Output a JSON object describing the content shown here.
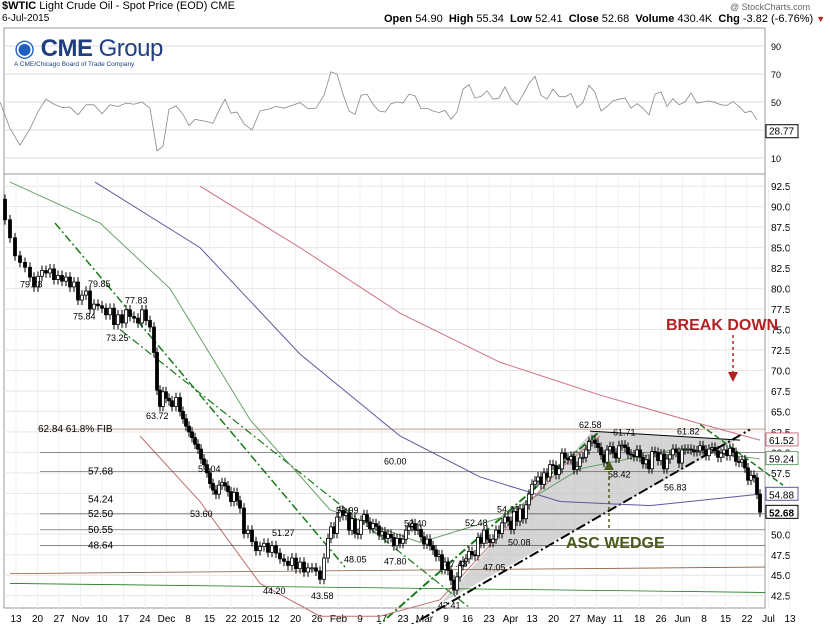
{
  "header": {
    "symbol": "$WTIC",
    "name": "Light Crude Oil - Spot Price (EOD)",
    "exchange": "CME",
    "date": "6-Jul-2015",
    "open_label": "Open",
    "open": "54.90",
    "high_label": "High",
    "high": "55.34",
    "low_label": "Low",
    "low": "52.41",
    "close_label": "Close",
    "close": "52.68",
    "volume_label": "Volume",
    "volume": "430.4K",
    "chg_label": "Chg",
    "chg": "-3.82 (-6.76%)",
    "chg_arrow": "▼",
    "watermark": "@ StockCharts.com"
  },
  "logo": {
    "brand_bold": "CME",
    "brand_light": " Group",
    "subtitle": "A CME/Chicago Board of Trade Company"
  },
  "colors": {
    "up": "#000000",
    "down": "#000000",
    "fib": "#8b5a3c",
    "wedge_fill": "#bfbfbf",
    "trend_green": "#1a7a1a",
    "annot_red": "#b22222",
    "annot_green": "#4a5a1a",
    "ma_blue": "#5a5aa0",
    "ma_pink": "#d07080",
    "ma_green": "#6aa06a"
  },
  "chart_data": {
    "type": "candlestick",
    "title": "$WTIC Light Crude Oil - Spot Price (EOD) CME",
    "y_axis": {
      "side": "right",
      "min": 41.0,
      "max": 93.5,
      "ticks": [
        "42.5",
        "45.0",
        "47.5",
        "50.0",
        "52.5",
        "55.0",
        "57.5",
        "60.0",
        "62.5",
        "65.0",
        "67.5",
        "70.0",
        "72.5",
        "75.0",
        "77.5",
        "80.0",
        "82.5",
        "85.0",
        "87.5",
        "90.0",
        "92.5"
      ]
    },
    "x_axis": {
      "labels": [
        "13",
        "20",
        "27",
        "Nov",
        "10",
        "17",
        "24",
        "Dec",
        "8",
        "15",
        "22",
        "2015",
        "12",
        "20",
        "26",
        "Feb",
        "9",
        "17",
        "23",
        "Mar",
        "9",
        "16",
        "23",
        "Apr",
        "13",
        "20",
        "27",
        "May",
        "11",
        "18",
        "26",
        "Jun",
        "8",
        "15",
        "22",
        "Jul",
        "13"
      ]
    },
    "rsi_panel": {
      "ticks": [
        "10",
        "30",
        "50",
        "70",
        "90"
      ],
      "last": "28.77"
    },
    "price_path": [
      [
        0,
        90.9
      ],
      [
        5,
        88.4
      ],
      [
        10,
        86.2
      ],
      [
        15,
        84.0
      ],
      [
        20,
        83.2
      ],
      [
        25,
        82.6
      ],
      [
        30,
        81.4
      ],
      [
        34,
        80.2
      ],
      [
        38,
        81.5
      ],
      [
        42,
        82.2
      ],
      [
        46,
        81.9
      ],
      [
        50,
        82.4
      ],
      [
        54,
        81.1
      ],
      [
        58,
        81.6
      ],
      [
        62,
        80.9
      ],
      [
        66,
        81.4
      ],
      [
        70,
        80.2
      ],
      [
        74,
        80.8
      ],
      [
        78,
        78.6
      ],
      [
        82,
        79.2
      ],
      [
        86,
        79.7
      ],
      [
        90,
        77.5
      ],
      [
        94,
        78.1
      ],
      [
        98,
        77.9
      ],
      [
        102,
        77.6
      ],
      [
        106,
        76.8
      ],
      [
        110,
        77.6
      ],
      [
        114,
        75.6
      ],
      [
        118,
        76.8
      ],
      [
        122,
        75.8
      ],
      [
        126,
        77.4
      ],
      [
        130,
        76.6
      ],
      [
        134,
        76.4
      ],
      [
        138,
        75.8
      ],
      [
        142,
        77.4
      ],
      [
        146,
        76.1
      ],
      [
        150,
        75.3
      ],
      [
        154,
        72.2
      ],
      [
        157,
        67.6
      ],
      [
        160,
        65.6
      ],
      [
        163,
        67.4
      ],
      [
        166,
        66.6
      ],
      [
        169,
        66.3
      ],
      [
        172,
        65.6
      ],
      [
        176,
        66.7
      ],
      [
        180,
        65.0
      ],
      [
        183,
        64.1
      ],
      [
        186,
        63.2
      ],
      [
        189,
        62.5
      ],
      [
        192,
        61.8
      ],
      [
        195,
        61.0
      ],
      [
        198,
        60.4
      ],
      [
        201,
        59.2
      ],
      [
        204,
        58.5
      ],
      [
        207,
        57.5
      ],
      [
        210,
        56.2
      ],
      [
        213,
        55.4
      ],
      [
        216,
        54.9
      ],
      [
        219,
        56.0
      ],
      [
        222,
        56.3
      ],
      [
        225,
        55.9
      ],
      [
        228,
        55.2
      ],
      [
        231,
        54.0
      ],
      [
        234,
        55.1
      ],
      [
        237,
        54.1
      ],
      [
        240,
        53.2
      ],
      [
        244,
        50.1
      ],
      [
        248,
        50.5
      ],
      [
        252,
        49.1
      ],
      [
        256,
        48.0
      ],
      [
        260,
        48.5
      ],
      [
        264,
        48.9
      ],
      [
        268,
        47.8
      ],
      [
        272,
        48.6
      ],
      [
        276,
        47.7
      ],
      [
        280,
        47.0
      ],
      [
        284,
        46.7
      ],
      [
        288,
        46.2
      ],
      [
        292,
        47.1
      ],
      [
        296,
        45.8
      ],
      [
        300,
        46.6
      ],
      [
        304,
        45.4
      ],
      [
        308,
        45.9
      ],
      [
        312,
        45.9
      ],
      [
        316,
        45.5
      ],
      [
        320,
        44.5
      ],
      [
        324,
        47.1
      ],
      [
        328,
        49.5
      ],
      [
        331,
        50.9
      ],
      [
        334,
        50.1
      ],
      [
        337,
        52.1
      ],
      [
        340,
        52.9
      ],
      [
        343,
        52.3
      ],
      [
        346,
        52.6
      ],
      [
        349,
        50.5
      ],
      [
        352,
        51.9
      ],
      [
        355,
        50.1
      ],
      [
        358,
        50.0
      ],
      [
        361,
        51.7
      ],
      [
        364,
        52.4
      ],
      [
        367,
        51.5
      ],
      [
        370,
        50.7
      ],
      [
        373,
        51.3
      ],
      [
        376,
        51.0
      ],
      [
        379,
        49.9
      ],
      [
        382,
        50.3
      ],
      [
        385,
        49.5
      ],
      [
        388,
        50.0
      ],
      [
        391,
        49.6
      ],
      [
        394,
        48.6
      ],
      [
        397,
        49.5
      ],
      [
        400,
        48.9
      ],
      [
        403,
        49.4
      ],
      [
        406,
        50.5
      ],
      [
        409,
        50.9
      ],
      [
        412,
        51.3
      ],
      [
        415,
        50.5
      ],
      [
        418,
        50.6
      ],
      [
        421,
        49.7
      ],
      [
        424,
        48.8
      ],
      [
        427,
        49.4
      ],
      [
        430,
        48.6
      ],
      [
        433,
        48.1
      ],
      [
        436,
        47.3
      ],
      [
        439,
        47.5
      ],
      [
        442,
        45.7
      ],
      [
        445,
        46.6
      ],
      [
        448,
        45.6
      ],
      [
        451,
        44.4
      ],
      [
        454,
        43.2
      ],
      [
        457,
        44.8
      ],
      [
        460,
        46.2
      ],
      [
        463,
        46.7
      ],
      [
        466,
        47.0
      ],
      [
        469,
        47.9
      ],
      [
        472,
        47.5
      ],
      [
        475,
        47.4
      ],
      [
        478,
        49.6
      ],
      [
        481,
        48.9
      ],
      [
        484,
        50.5
      ],
      [
        487,
        49.4
      ],
      [
        490,
        49.0
      ],
      [
        493,
        49.4
      ],
      [
        496,
        50.5
      ],
      [
        499,
        50.1
      ],
      [
        502,
        51.4
      ],
      [
        505,
        52.1
      ],
      [
        508,
        51.6
      ],
      [
        511,
        50.6
      ],
      [
        514,
        52.8
      ],
      [
        517,
        51.6
      ],
      [
        520,
        53.1
      ],
      [
        523,
        51.9
      ],
      [
        526,
        53.6
      ],
      [
        529,
        54.9
      ],
      [
        532,
        56.1
      ],
      [
        535,
        56.5
      ],
      [
        538,
        57.0
      ],
      [
        541,
        56.1
      ],
      [
        544,
        57.5
      ],
      [
        547,
        57.0
      ],
      [
        550,
        58.5
      ],
      [
        553,
        58.4
      ],
      [
        556,
        57.3
      ],
      [
        559,
        58.0
      ],
      [
        562,
        59.9
      ],
      [
        565,
        59.3
      ],
      [
        568,
        59.1
      ],
      [
        571,
        59.5
      ],
      [
        574,
        57.9
      ],
      [
        577,
        58.3
      ],
      [
        580,
        59.3
      ],
      [
        583,
        59.4
      ],
      [
        586,
        60.3
      ],
      [
        589,
        61.3
      ],
      [
        592,
        61.5
      ],
      [
        595,
        61.1
      ],
      [
        598,
        60.6
      ],
      [
        601,
        59.7
      ],
      [
        604,
        58.8
      ],
      [
        607,
        60.3
      ],
      [
        610,
        60.7
      ],
      [
        613,
        59.9
      ],
      [
        616,
        59.3
      ],
      [
        619,
        60.8
      ],
      [
        622,
        60.9
      ],
      [
        625,
        60.6
      ],
      [
        628,
        59.8
      ],
      [
        631,
        59.7
      ],
      [
        634,
        59.5
      ],
      [
        637,
        60.3
      ],
      [
        640,
        59.4
      ],
      [
        643,
        58.6
      ],
      [
        646,
        59.1
      ],
      [
        649,
        58.0
      ],
      [
        652,
        60.1
      ],
      [
        655,
        60.0
      ],
      [
        658,
        59.0
      ],
      [
        661,
        59.8
      ],
      [
        664,
        58.0
      ],
      [
        667,
        59.2
      ],
      [
        670,
        59.7
      ],
      [
        673,
        60.4
      ],
      [
        676,
        60.0
      ],
      [
        679,
        58.7
      ],
      [
        682,
        60.3
      ],
      [
        685,
        60.4
      ],
      [
        688,
        60.4
      ],
      [
        691,
        60.3
      ],
      [
        694,
        60.1
      ],
      [
        697,
        60.2
      ],
      [
        700,
        60.8
      ],
      [
        703,
        60.3
      ],
      [
        706,
        59.6
      ],
      [
        709,
        60.4
      ],
      [
        712,
        60.6
      ],
      [
        715,
        60.2
      ],
      [
        718,
        59.4
      ],
      [
        721,
        59.9
      ],
      [
        724,
        60.3
      ],
      [
        727,
        59.6
      ],
      [
        730,
        60.5
      ],
      [
        733,
        60.0
      ],
      [
        736,
        58.9
      ],
      [
        739,
        58.8
      ],
      [
        742,
        59.1
      ],
      [
        745,
        58.1
      ],
      [
        748,
        56.6
      ],
      [
        751,
        57.2
      ],
      [
        754,
        56.9
      ],
      [
        757,
        54.9
      ],
      [
        760,
        52.7
      ]
    ],
    "annotations": [
      {
        "text": "79.85",
        "price": 79.85,
        "at": 88
      },
      {
        "text": "79.78",
        "price": 79.78,
        "at": 20
      },
      {
        "text": "77.83",
        "price": 77.83,
        "at": 125
      },
      {
        "text": "75.84",
        "price": 75.84,
        "at": 73
      },
      {
        "text": "73.25",
        "price": 73.25,
        "at": 106
      },
      {
        "text": "63.72",
        "price": 63.72,
        "at": 146
      },
      {
        "text": "59.04",
        "price": 59.04,
        "at": 198
      },
      {
        "text": "53.60",
        "price": 53.6,
        "at": 190
      },
      {
        "text": "51.27",
        "price": 51.27,
        "at": 272
      },
      {
        "text": "53.99",
        "price": 53.99,
        "at": 336
      },
      {
        "text": "52.40",
        "price": 52.4,
        "at": 404
      },
      {
        "text": "52.48",
        "price": 52.48,
        "at": 465
      },
      {
        "text": "48.05",
        "price": 48.05,
        "at": 344
      },
      {
        "text": "47.80",
        "price": 47.8,
        "at": 384
      },
      {
        "text": "47.48",
        "price": 47.48,
        "at": 445
      },
      {
        "text": "47.05",
        "price": 47.05,
        "at": 483
      },
      {
        "text": "50.08",
        "price": 50.08,
        "at": 508
      },
      {
        "text": "54.13",
        "price": 54.13,
        "at": 497
      },
      {
        "text": "44.20",
        "price": 44.2,
        "at": 263
      },
      {
        "text": "43.58",
        "price": 43.58,
        "at": 311
      },
      {
        "text": "42.41",
        "price": 42.41,
        "at": 438
      },
      {
        "text": "62.58",
        "price": 62.58,
        "at": 579
      },
      {
        "text": "61.71",
        "price": 61.71,
        "at": 613
      },
      {
        "text": "61.82",
        "price": 61.82,
        "at": 677
      },
      {
        "text": "58.42",
        "price": 58.42,
        "at": 608
      },
      {
        "text": "56.83",
        "price": 56.83,
        "at": 664
      },
      {
        "text": "60.00",
        "price": 60.0,
        "at": 384
      }
    ],
    "left_levels": [
      {
        "text": "62.84  61.8% FIB",
        "price": 62.84
      },
      {
        "text": "57.68",
        "price": 57.68
      },
      {
        "text": "54.24",
        "price": 54.24
      },
      {
        "text": "52.50",
        "price": 52.5
      },
      {
        "text": "50.55",
        "price": 50.55
      },
      {
        "text": "48.64",
        "price": 48.64
      }
    ],
    "right_flags": [
      {
        "text": "61.52",
        "price": 61.52,
        "color": "#d07080"
      },
      {
        "text": "59.24",
        "price": 59.24,
        "color": "#6aa06a"
      },
      {
        "text": "54.88",
        "price": 54.88,
        "color": "#5a5aa0"
      },
      {
        "text": "52.68",
        "price": 52.68,
        "color": "#000000"
      }
    ],
    "labels": {
      "break_down": "BREAK DOWN",
      "asc_wedge": "ASC WEDGE"
    }
  }
}
